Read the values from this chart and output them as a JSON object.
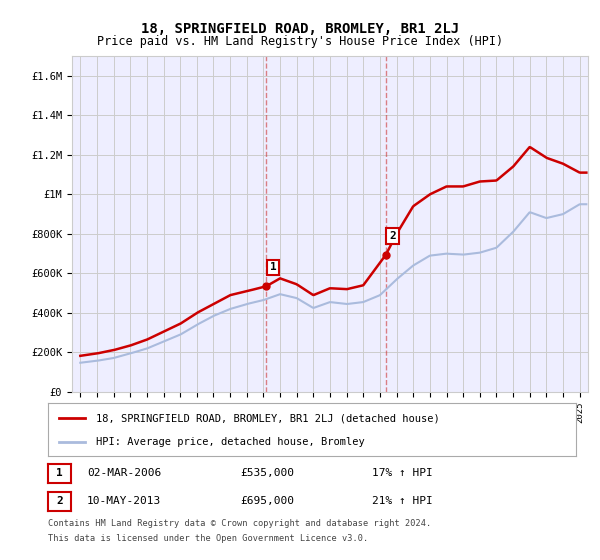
{
  "title": "18, SPRINGFIELD ROAD, BROMLEY, BR1 2LJ",
  "subtitle": "Price paid vs. HM Land Registry's House Price Index (HPI)",
  "ylabel_ticks": [
    "£0",
    "£200K",
    "£400K",
    "£600K",
    "£800K",
    "£1M",
    "£1.2M",
    "£1.4M",
    "£1.6M"
  ],
  "ylabel_values": [
    0,
    200000,
    400000,
    600000,
    800000,
    1000000,
    1200000,
    1400000,
    1600000
  ],
  "ylim": [
    0,
    1700000
  ],
  "xlim_start": 1994.5,
  "xlim_end": 2025.5,
  "hpi_color": "#aabbdd",
  "price_color": "#cc0000",
  "marker1_year": 2006.17,
  "marker2_year": 2013.36,
  "marker1_price": 535000,
  "marker2_price": 695000,
  "legend_line1": "18, SPRINGFIELD ROAD, BROMLEY, BR1 2LJ (detached house)",
  "legend_line2": "HPI: Average price, detached house, Bromley",
  "table_row1_num": "1",
  "table_row1_date": "02-MAR-2006",
  "table_row1_price": "£535,000",
  "table_row1_hpi": "17% ↑ HPI",
  "table_row2_num": "2",
  "table_row2_date": "10-MAY-2013",
  "table_row2_price": "£695,000",
  "table_row2_hpi": "21% ↑ HPI",
  "footnote1": "Contains HM Land Registry data © Crown copyright and database right 2024.",
  "footnote2": "This data is licensed under the Open Government Licence v3.0.",
  "background_color": "#ffffff",
  "grid_color": "#cccccc",
  "plot_bg_color": "#eeeeff"
}
